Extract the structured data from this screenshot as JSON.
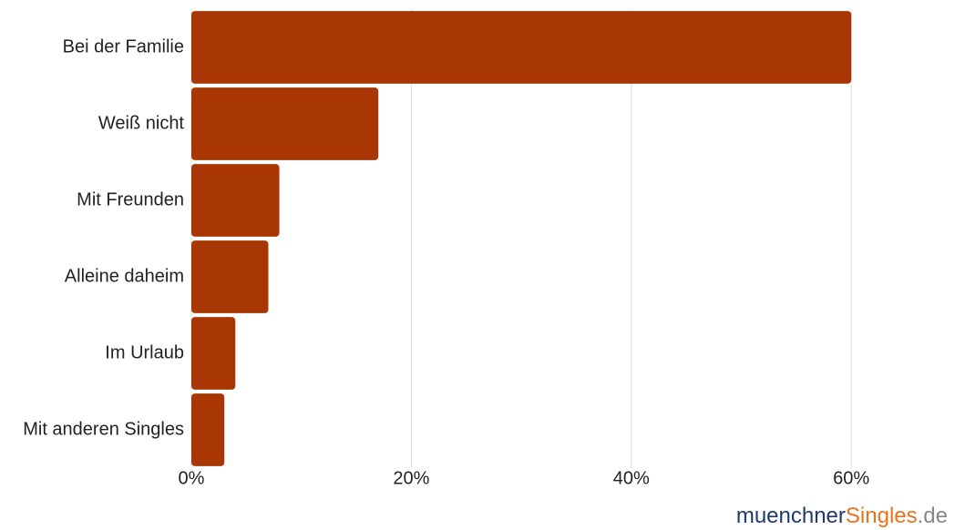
{
  "chart_data": {
    "type": "bar",
    "orientation": "horizontal",
    "categories": [
      "Bei der Familie",
      "Weiß nicht",
      "Mit Freunden",
      "Alleine daheim",
      "Im Urlaub",
      "Mit anderen Singles"
    ],
    "values": [
      60,
      17,
      8,
      7,
      4,
      3
    ],
    "color": "#a93705",
    "xlim": [
      0,
      68
    ],
    "xticks": [
      {
        "value": 0,
        "label": "0%"
      },
      {
        "value": 20,
        "label": "20%"
      },
      {
        "value": 40,
        "label": "40%"
      },
      {
        "value": 60,
        "label": "60%"
      }
    ],
    "grid": true,
    "logo": [
      "muenchner",
      "Singles",
      ".de"
    ]
  }
}
